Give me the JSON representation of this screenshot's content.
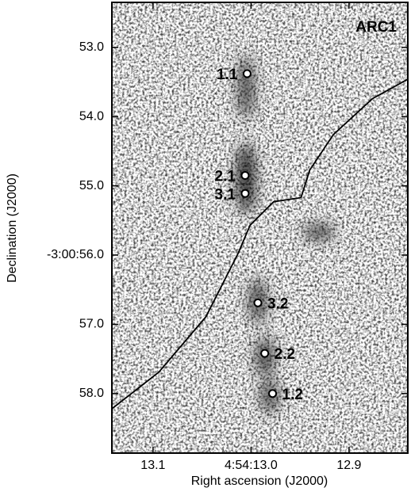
{
  "chart_data": {
    "type": "scatter",
    "title": "ARC1",
    "x_label": "Right ascension (J2000)",
    "y_label": "Declination (J2000)",
    "xlim": [
      13.142,
      12.84
    ],
    "xticks": [
      {
        "value": 13.1,
        "label": "13.1"
      },
      {
        "value": 13.0,
        "label": "4:54:13.0"
      },
      {
        "value": 12.9,
        "label": "12.9"
      }
    ],
    "ylim": [
      58.86,
      52.35
    ],
    "yticks": [
      {
        "value": 53.0,
        "label": "53.0"
      },
      {
        "value": 54.0,
        "label": "54.0"
      },
      {
        "value": 55.0,
        "label": "55.0"
      },
      {
        "value": 56.0,
        "label": "-3:00:56.0"
      },
      {
        "value": 57.0,
        "label": "57.0"
      },
      {
        "value": 58.0,
        "label": "58.0"
      }
    ],
    "points": {
      "labels": [
        "1.1",
        "2.1",
        "3.1",
        "3.2",
        "2.2",
        "1.2"
      ],
      "x": [
        13.004,
        13.006,
        13.006,
        12.993,
        12.986,
        12.978
      ],
      "y": [
        53.38,
        54.85,
        55.11,
        56.69,
        57.42,
        58.0
      ]
    },
    "curve": {
      "x": [
        13.142,
        13.094,
        13.046,
        13.013,
        13.001,
        12.977,
        12.949,
        12.94,
        12.916,
        12.876,
        12.84
      ],
      "y": [
        58.22,
        57.69,
        56.89,
        55.97,
        55.57,
        55.23,
        55.17,
        54.77,
        54.26,
        53.74,
        53.46
      ]
    }
  }
}
